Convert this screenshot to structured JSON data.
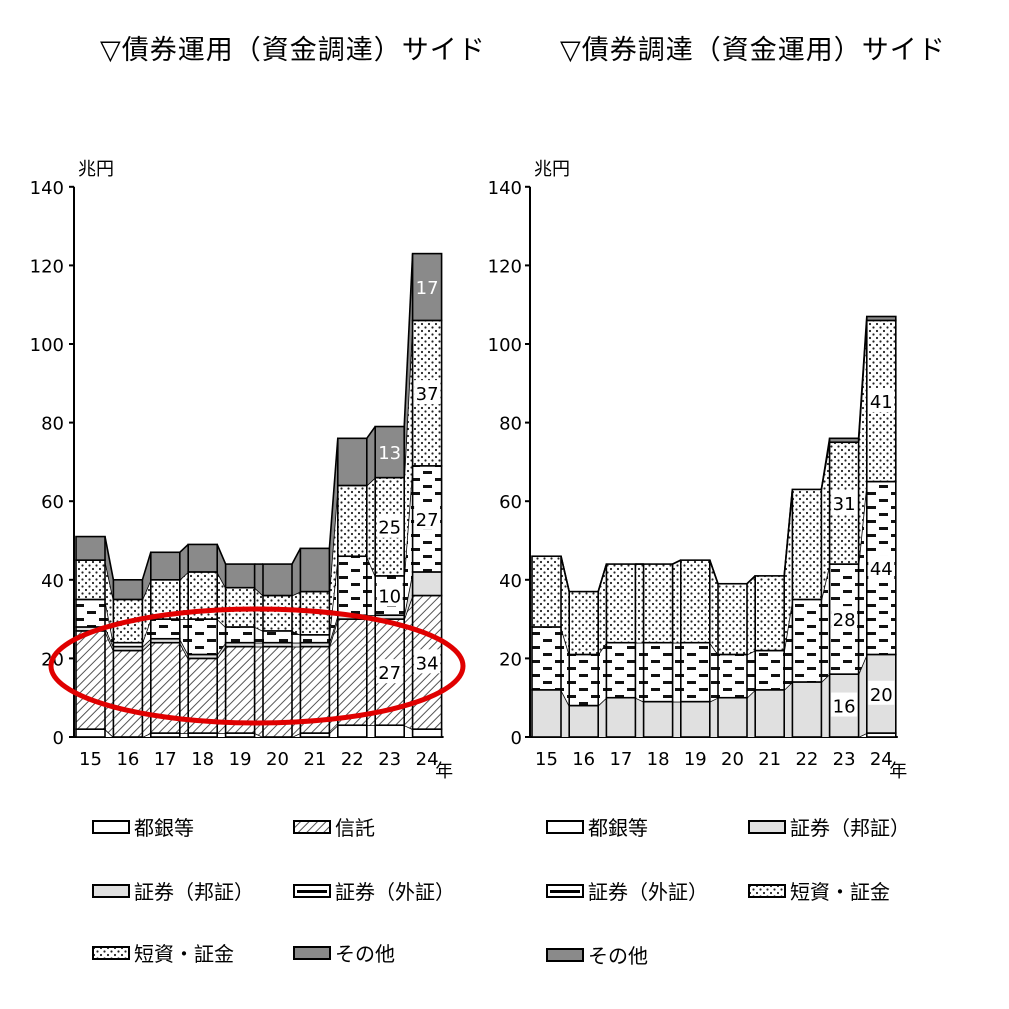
{
  "chart_data": [
    {
      "type": "bar",
      "title": "▽債券運用（資金調達）サイド",
      "ylabel": "兆円",
      "xlabel": "年",
      "ylim": [
        0,
        140
      ],
      "yticks": [
        0,
        20,
        40,
        60,
        80,
        100,
        120,
        140
      ],
      "categories": [
        "15",
        "16",
        "17",
        "18",
        "19",
        "20",
        "21",
        "22",
        "23",
        "24"
      ],
      "stacked": true,
      "series": [
        {
          "name": "都銀等",
          "pattern": "white",
          "values": [
            2,
            0,
            1,
            1,
            1,
            0,
            1,
            3,
            3,
            2
          ]
        },
        {
          "name": "信託",
          "pattern": "hatch",
          "values": [
            25,
            22,
            23,
            19,
            22,
            23,
            22,
            27,
            27,
            34
          ]
        },
        {
          "name": "証券（邦証）",
          "pattern": "lightgray",
          "values": [
            1,
            1,
            1,
            1,
            1,
            1,
            1,
            1,
            1,
            6
          ]
        },
        {
          "name": "証券（外証）",
          "pattern": "dash",
          "values": [
            7,
            1,
            5,
            9,
            4,
            3,
            2,
            15,
            10,
            27
          ]
        },
        {
          "name": "短資・証金",
          "pattern": "dots",
          "values": [
            10,
            11,
            10,
            12,
            10,
            9,
            11,
            18,
            25,
            37
          ]
        },
        {
          "name": "その他",
          "pattern": "darkgray",
          "values": [
            6,
            5,
            7,
            7,
            6,
            8,
            11,
            12,
            13,
            17
          ]
        }
      ],
      "data_labels": [
        {
          "series": "信託",
          "category": "23",
          "text": "27"
        },
        {
          "series": "信託",
          "category": "24",
          "text": "34"
        },
        {
          "series": "証券（外証）",
          "category": "23",
          "text": "10"
        },
        {
          "series": "証券（外証）",
          "category": "24",
          "text": "27"
        },
        {
          "series": "短資・証金",
          "category": "23",
          "text": "25"
        },
        {
          "series": "短資・証金",
          "category": "24",
          "text": "37"
        },
        {
          "series": "その他",
          "category": "23",
          "text": "13"
        },
        {
          "series": "その他",
          "category": "24",
          "text": "17"
        }
      ],
      "annotation": "red ellipse around 信託 segments"
    },
    {
      "type": "bar",
      "title": "▽債券調達（資金運用）サイド",
      "ylabel": "兆円",
      "xlabel": "年",
      "ylim": [
        0,
        140
      ],
      "yticks": [
        0,
        20,
        40,
        60,
        80,
        100,
        120,
        140
      ],
      "categories": [
        "15",
        "16",
        "17",
        "18",
        "19",
        "20",
        "21",
        "22",
        "23",
        "24"
      ],
      "stacked": true,
      "series": [
        {
          "name": "都銀等",
          "pattern": "white",
          "values": [
            0,
            0,
            0,
            0,
            0,
            0,
            0,
            0,
            0,
            1
          ]
        },
        {
          "name": "証券（邦証）",
          "pattern": "lightgray",
          "values": [
            12,
            8,
            10,
            9,
            9,
            10,
            12,
            14,
            16,
            20
          ]
        },
        {
          "name": "証券（外証）",
          "pattern": "dash",
          "values": [
            16,
            13,
            14,
            15,
            15,
            11,
            10,
            21,
            28,
            44
          ]
        },
        {
          "name": "短資・証金",
          "pattern": "dots",
          "values": [
            18,
            16,
            20,
            20,
            21,
            18,
            19,
            28,
            31,
            41
          ]
        },
        {
          "name": "その他",
          "pattern": "darkgray",
          "values": [
            0,
            0,
            0,
            0,
            0,
            0,
            0,
            0,
            1,
            1
          ]
        }
      ],
      "data_labels": [
        {
          "series": "証券（邦証）",
          "category": "23",
          "text": "16"
        },
        {
          "series": "証券（邦証）",
          "category": "24",
          "text": "20"
        },
        {
          "series": "証券（外証）",
          "category": "23",
          "text": "28"
        },
        {
          "series": "証券（外証）",
          "category": "24",
          "text": "44"
        },
        {
          "series": "短資・証金",
          "category": "23",
          "text": "31"
        },
        {
          "series": "短資・証金",
          "category": "24",
          "text": "41"
        }
      ]
    }
  ],
  "colors": {
    "annotation": "#e00000",
    "lightgray": "#e0e0e0",
    "darkgray": "#8a8a8a"
  }
}
